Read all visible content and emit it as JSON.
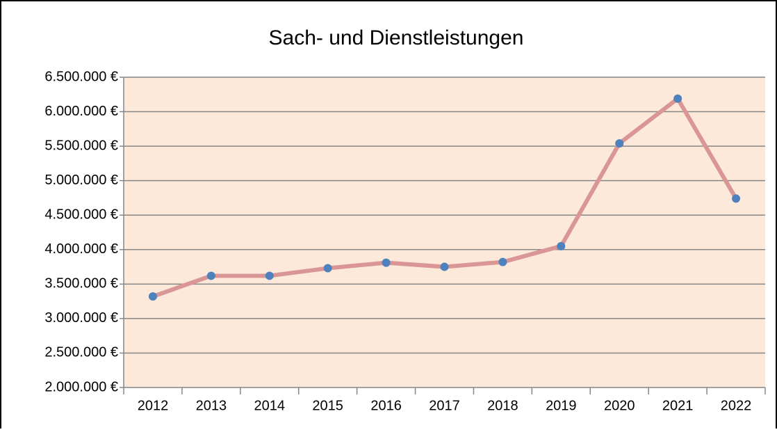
{
  "chart_data": {
    "type": "line",
    "title": "Sach- und Dienstleistungen",
    "categories": [
      "2012",
      "2013",
      "2014",
      "2015",
      "2016",
      "2017",
      "2018",
      "2019",
      "2020",
      "2021",
      "2022"
    ],
    "values": [
      3320000,
      3620000,
      3620000,
      3730000,
      3810000,
      3750000,
      3820000,
      4050000,
      5540000,
      6190000,
      4740000
    ],
    "color": "#d99694",
    "marker_color": "#4f81bd",
    "background": "#fde9d9",
    "ylim": [
      2000000,
      6500000
    ],
    "yticks": [
      {
        "value": 2000000,
        "label": "2.000.000 €"
      },
      {
        "value": 2500000,
        "label": "2.500.000 €"
      },
      {
        "value": 3000000,
        "label": "3.000.000 €"
      },
      {
        "value": 3500000,
        "label": "3.500.000 €"
      },
      {
        "value": 4000000,
        "label": "4.000.000 €"
      },
      {
        "value": 4500000,
        "label": "4.500.000 €"
      },
      {
        "value": 5000000,
        "label": "5.000.000 €"
      },
      {
        "value": 5500000,
        "label": "5.500.000 €"
      },
      {
        "value": 6000000,
        "label": "6.000.000 €"
      },
      {
        "value": 6500000,
        "label": "6.500.000 €"
      }
    ],
    "grid": true
  }
}
